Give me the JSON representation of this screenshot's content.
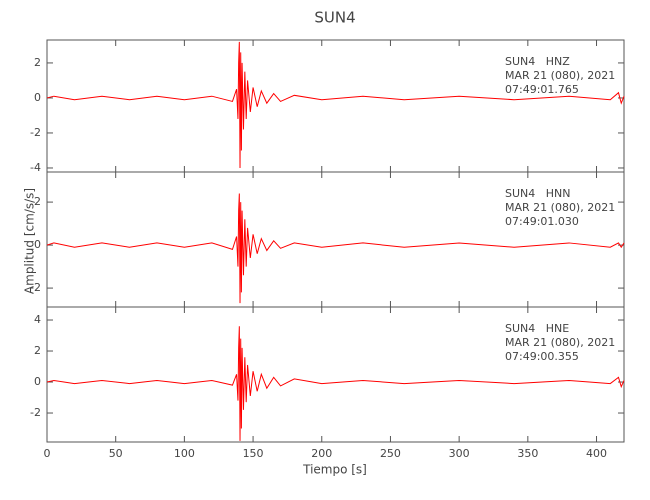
{
  "title": "SUN4",
  "xlabel": "Tiempo [s]",
  "ylabel": "Amplitud [cm/s/s]",
  "chart_data": [
    {
      "type": "line",
      "annotation": [
        "SUN4   HNZ",
        "MAR 21 (080), 2021",
        "07:49:01.765"
      ],
      "xlim": [
        0,
        420
      ],
      "xticks": [
        0,
        50,
        100,
        150,
        200,
        250,
        300,
        350,
        400
      ],
      "xtick_labels": false,
      "ylim": [
        -4.23,
        3.31
      ],
      "yticks": [
        -4,
        -2,
        0,
        2
      ],
      "x": [
        0,
        5,
        20,
        40,
        60,
        80,
        100,
        120,
        135,
        138,
        139,
        139.5,
        140,
        140.5,
        141,
        141.5,
        142,
        143,
        144,
        145,
        146,
        148,
        150,
        153,
        156,
        160,
        165,
        170,
        180,
        200,
        230,
        260,
        300,
        340,
        380,
        410,
        416,
        418,
        420
      ],
      "series": [
        {
          "color": "#ff0000",
          "values": [
            0,
            0.1,
            -0.1,
            0.1,
            -0.1,
            0.1,
            -0.1,
            0.1,
            -0.2,
            0.5,
            -1.2,
            2.0,
            3.2,
            -4.0,
            2.6,
            -3.0,
            2.0,
            -1.8,
            1.5,
            -1.2,
            1.0,
            -0.8,
            0.6,
            -0.5,
            0.4,
            -0.3,
            0.25,
            -0.2,
            0.15,
            -0.1,
            0.1,
            -0.1,
            0.1,
            -0.1,
            0.1,
            -0.1,
            0.3,
            -0.3,
            0.1
          ]
        }
      ]
    },
    {
      "type": "line",
      "annotation": [
        "SUN4   HNN",
        "MAR 21 (080), 2021",
        "07:49:01.030"
      ],
      "xlim": [
        0,
        420
      ],
      "xticks": [
        0,
        50,
        100,
        150,
        200,
        250,
        300,
        350,
        400
      ],
      "xtick_labels": false,
      "ylim": [
        -2.88,
        3.4
      ],
      "yticks": [
        -2,
        0,
        2
      ],
      "x": [
        0,
        5,
        20,
        40,
        60,
        80,
        100,
        120,
        135,
        138,
        139,
        139.5,
        140,
        140.5,
        141,
        141.5,
        142,
        143,
        144,
        145,
        146,
        148,
        150,
        153,
        156,
        160,
        165,
        170,
        180,
        200,
        230,
        260,
        300,
        340,
        380,
        410,
        416,
        418,
        420
      ],
      "series": [
        {
          "color": "#ff0000",
          "values": [
            0,
            0.1,
            -0.1,
            0.1,
            -0.1,
            0.1,
            -0.1,
            0.1,
            -0.2,
            0.4,
            -1.0,
            1.6,
            2.4,
            -2.7,
            2.0,
            -2.2,
            1.6,
            -1.4,
            1.2,
            -1.0,
            0.8,
            -0.6,
            0.5,
            -0.4,
            0.3,
            -0.25,
            0.2,
            -0.15,
            0.1,
            -0.1,
            0.1,
            -0.1,
            0.1,
            -0.1,
            0.1,
            -0.1,
            0.1,
            -0.1,
            0.1
          ]
        }
      ]
    },
    {
      "type": "line",
      "annotation": [
        "SUN4   HNE",
        "MAR 21 (080), 2021",
        "07:49:00.355"
      ],
      "xlim": [
        0,
        420
      ],
      "xticks": [
        0,
        50,
        100,
        150,
        200,
        250,
        300,
        350,
        400
      ],
      "xtick_labels": true,
      "ylim": [
        -3.87,
        4.84
      ],
      "yticks": [
        -2,
        0,
        2,
        4
      ],
      "x": [
        0,
        5,
        20,
        40,
        60,
        80,
        100,
        120,
        135,
        138,
        139,
        139.5,
        140,
        140.5,
        141,
        141.5,
        142,
        143,
        144,
        145,
        146,
        148,
        150,
        153,
        156,
        160,
        165,
        170,
        180,
        200,
        230,
        260,
        300,
        340,
        380,
        410,
        416,
        418,
        420
      ],
      "series": [
        {
          "color": "#ff0000",
          "values": [
            0,
            0.1,
            -0.1,
            0.1,
            -0.1,
            0.1,
            -0.1,
            0.1,
            -0.2,
            0.5,
            -1.2,
            2.2,
            3.6,
            -3.8,
            2.8,
            -3.0,
            2.2,
            -1.8,
            1.6,
            -1.3,
            1.1,
            -0.9,
            0.7,
            -0.6,
            0.5,
            -0.4,
            0.3,
            -0.25,
            0.2,
            -0.1,
            0.1,
            -0.1,
            0.1,
            -0.1,
            0.1,
            -0.1,
            0.3,
            -0.3,
            0.1
          ]
        }
      ]
    }
  ]
}
